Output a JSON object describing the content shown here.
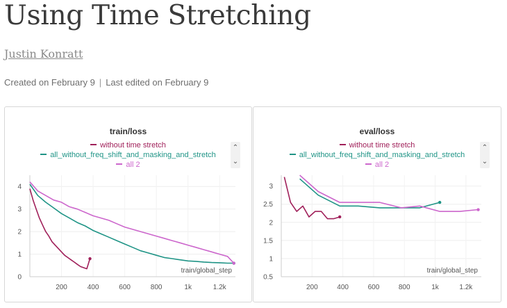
{
  "report": {
    "title": "Using Time Stretching",
    "author": "Justin Konratt",
    "created": "Created on February 9",
    "separator": "|",
    "edited": "Last edited on February 9"
  },
  "colors": {
    "without_time_stretch": "#a0205a",
    "all_without": "#1f9486",
    "all_2": "#cc66cc"
  },
  "legend_scroll": {
    "up_icon": "chevron-up-icon",
    "down_icon": "chevron-down-icon",
    "up_glyph": "⌃",
    "down_glyph": "⌄"
  },
  "chart_data": [
    {
      "type": "line",
      "title": "train/loss",
      "xlabel": "train/global_step",
      "ylabel": "",
      "xlim": [
        0,
        1300
      ],
      "ylim": [
        0,
        4.5
      ],
      "x_ticks": [
        200,
        400,
        600,
        800,
        1000,
        1200
      ],
      "x_tick_labels": [
        "200",
        "400",
        "600",
        "800",
        "1k",
        "1.2k"
      ],
      "y_ticks": [
        0,
        1,
        2,
        3,
        4
      ],
      "y_tick_labels": [
        "0",
        "1",
        "2",
        "3",
        "4"
      ],
      "grid": true,
      "legend_position": "top",
      "series": [
        {
          "name": "without time stretch",
          "color": "#a0205a",
          "x": [
            0,
            20,
            40,
            60,
            80,
            100,
            120,
            140,
            160,
            180,
            200,
            220,
            240,
            260,
            280,
            300,
            320,
            340,
            360,
            380
          ],
          "y": [
            3.9,
            3.4,
            3.0,
            2.6,
            2.3,
            2.0,
            1.8,
            1.55,
            1.4,
            1.25,
            1.1,
            0.95,
            0.85,
            0.75,
            0.65,
            0.55,
            0.45,
            0.4,
            0.35,
            0.8
          ]
        },
        {
          "name": "all_without_freq_shift_and_masking_and_stretch",
          "color": "#1f9486",
          "x": [
            0,
            50,
            100,
            150,
            200,
            250,
            300,
            350,
            400,
            450,
            500,
            550,
            600,
            650,
            700,
            750,
            800,
            850,
            900,
            950,
            1000,
            1050,
            1100,
            1150,
            1200,
            1250,
            1290
          ],
          "y": [
            4.1,
            3.6,
            3.3,
            3.05,
            2.8,
            2.6,
            2.4,
            2.25,
            2.05,
            1.9,
            1.75,
            1.6,
            1.45,
            1.3,
            1.15,
            1.05,
            0.95,
            0.85,
            0.8,
            0.75,
            0.7,
            0.68,
            0.65,
            0.63,
            0.62,
            0.6,
            0.6
          ]
        },
        {
          "name": "all  2",
          "color": "#cc66cc",
          "x": [
            0,
            50,
            100,
            150,
            200,
            250,
            300,
            350,
            400,
            450,
            500,
            550,
            600,
            650,
            700,
            750,
            800,
            850,
            900,
            950,
            1000,
            1050,
            1100,
            1150,
            1200,
            1250,
            1290
          ],
          "y": [
            4.2,
            3.8,
            3.6,
            3.4,
            3.3,
            3.1,
            3.0,
            2.85,
            2.7,
            2.6,
            2.5,
            2.35,
            2.2,
            2.1,
            2.0,
            1.9,
            1.8,
            1.7,
            1.6,
            1.5,
            1.4,
            1.3,
            1.2,
            1.1,
            1.0,
            0.9,
            0.6
          ]
        }
      ]
    },
    {
      "type": "line",
      "title": "eval/loss",
      "xlabel": "train/global_step",
      "ylabel": "",
      "xlim": [
        0,
        1300
      ],
      "ylim": [
        0.5,
        3.3
      ],
      "x_ticks": [
        200,
        400,
        600,
        800,
        1000,
        1200
      ],
      "x_tick_labels": [
        "200",
        "400",
        "600",
        "800",
        "1k",
        "1.2k"
      ],
      "y_ticks": [
        0.5,
        1,
        1.5,
        2,
        2.5,
        3
      ],
      "y_tick_labels": [
        "0.5",
        "1",
        "1.5",
        "2",
        "2.5",
        "3"
      ],
      "grid": true,
      "legend_position": "top",
      "series": [
        {
          "name": "without time stretch",
          "color": "#a0205a",
          "x": [
            20,
            60,
            100,
            140,
            180,
            220,
            260,
            300,
            340,
            380
          ],
          "y": [
            3.25,
            2.55,
            2.3,
            2.45,
            2.15,
            2.3,
            2.3,
            2.1,
            2.1,
            2.15
          ]
        },
        {
          "name": "all_without_freq_shift_and_masking_and_stretch",
          "color": "#1f9486",
          "x": [
            120,
            240,
            380,
            500,
            640,
            780,
            900,
            1030
          ],
          "y": [
            3.2,
            2.75,
            2.45,
            2.45,
            2.4,
            2.4,
            2.4,
            2.55
          ]
        },
        {
          "name": "all  2",
          "color": "#cc66cc",
          "x": [
            120,
            240,
            380,
            500,
            640,
            780,
            900,
            1030,
            1160,
            1280
          ],
          "y": [
            3.3,
            2.85,
            2.55,
            2.55,
            2.55,
            2.4,
            2.45,
            2.3,
            2.3,
            2.35
          ]
        }
      ]
    }
  ]
}
